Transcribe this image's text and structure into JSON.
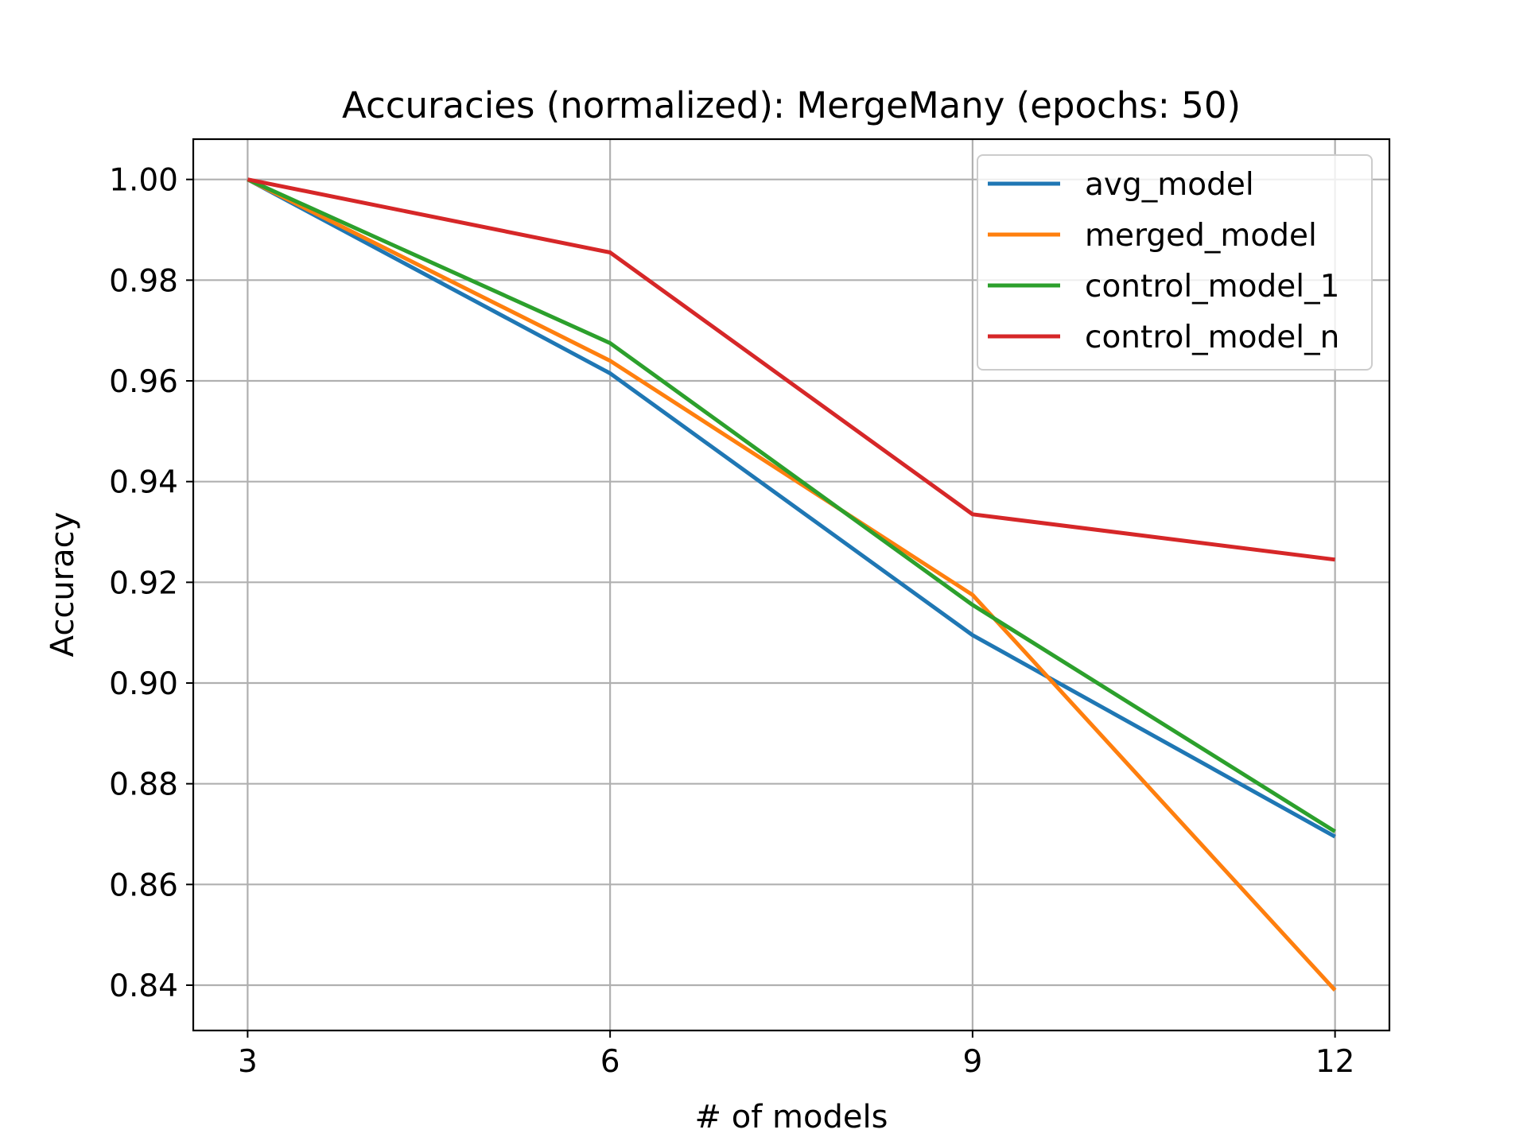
{
  "chart_data": {
    "type": "line",
    "title": "Accuracies (normalized): MergeMany (epochs: 50)",
    "xlabel": "# of models",
    "ylabel": "Accuracy",
    "x": [
      3,
      6,
      9,
      12
    ],
    "xticks": [
      3,
      6,
      9,
      12
    ],
    "yticks": [
      0.84,
      0.86,
      0.88,
      0.9,
      0.92,
      0.94,
      0.96,
      0.98,
      1.0
    ],
    "ytick_labels": [
      "0.84",
      "0.86",
      "0.88",
      "0.90",
      "0.92",
      "0.94",
      "0.96",
      "0.98",
      "1.00"
    ],
    "xlim": [
      2.55,
      12.45
    ],
    "ylim": [
      0.831,
      1.008
    ],
    "grid": true,
    "legend_position": "top-right",
    "series": [
      {
        "name": "avg_model",
        "color": "#1f77b4",
        "values": [
          1.0,
          0.9615,
          0.9095,
          0.8695
        ]
      },
      {
        "name": "merged_model",
        "color": "#ff7f0e",
        "values": [
          1.0,
          0.964,
          0.9175,
          0.839
        ]
      },
      {
        "name": "control_model_1",
        "color": "#2ca02c",
        "values": [
          1.0,
          0.9675,
          0.9155,
          0.8705
        ]
      },
      {
        "name": "control_model_n",
        "color": "#d62728",
        "values": [
          1.0,
          0.9855,
          0.9335,
          0.9245
        ]
      }
    ]
  }
}
